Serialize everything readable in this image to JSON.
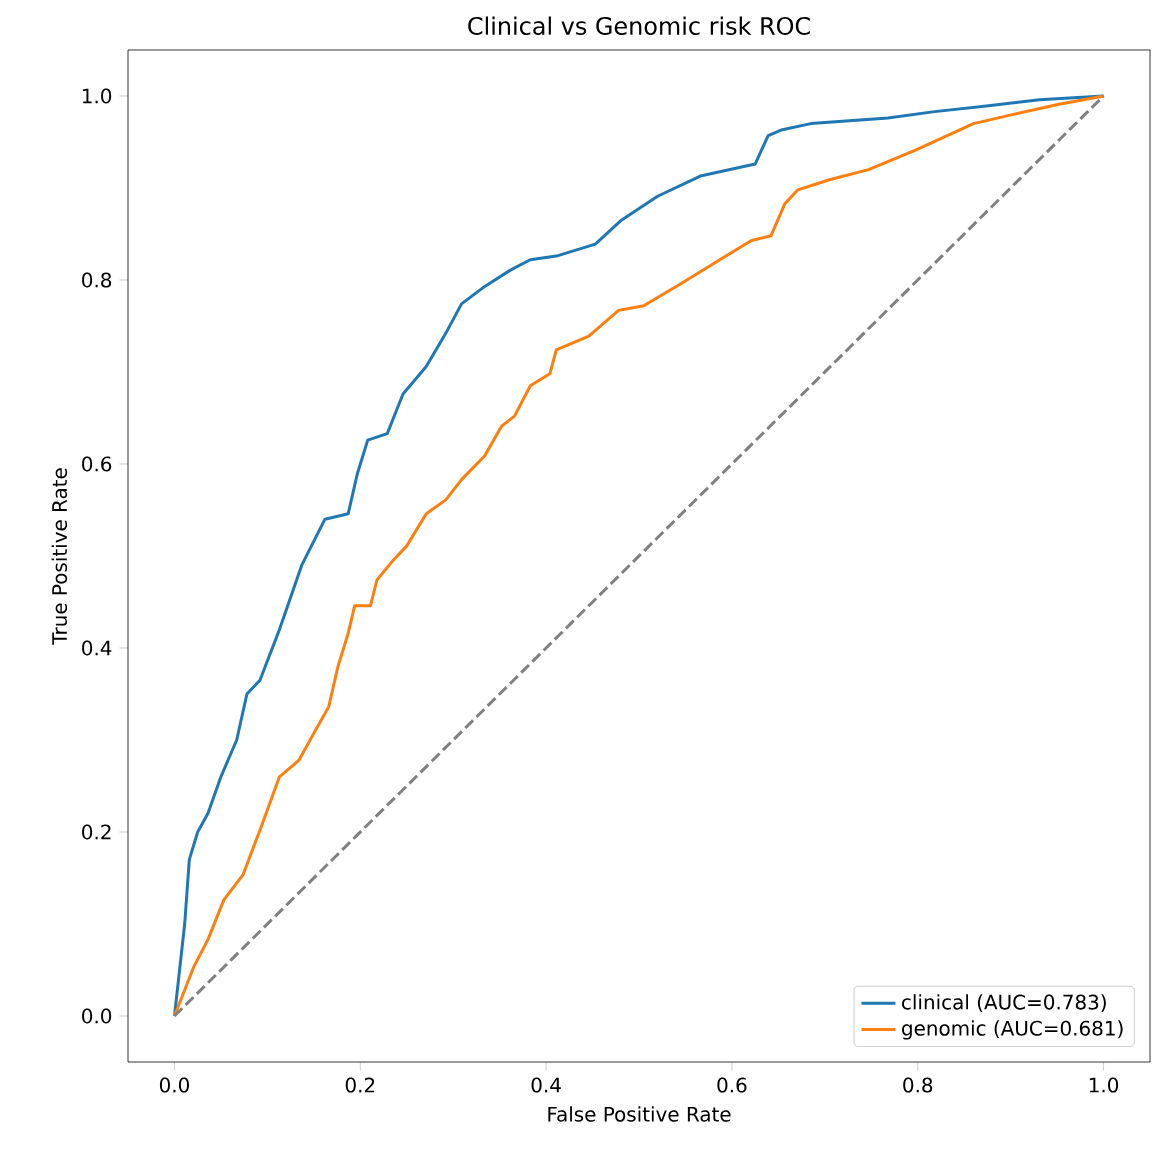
{
  "chart_data": {
    "type": "line",
    "title": "Clinical vs Genomic risk ROC",
    "xlabel": "False Positive Rate",
    "ylabel": "True Positive Rate",
    "xlim": [
      -0.05,
      1.05
    ],
    "ylim": [
      -0.05,
      1.05
    ],
    "xticks": [
      {
        "value": 0,
        "label": "0.0"
      },
      0.2,
      0.4,
      0.6,
      0.8,
      {
        "value": 1,
        "label": "1.0"
      }
    ],
    "yticks": [
      {
        "value": 0,
        "label": "0.0"
      },
      0.2,
      0.4,
      0.6,
      0.8,
      {
        "value": 1,
        "label": "1.0"
      }
    ],
    "legend": "bottom right",
    "grid": false,
    "series": [
      {
        "name": "clinical (AUC=0.783)",
        "color": "#1f77b4",
        "x": [
          0,
          0.011,
          0.016,
          0.025,
          0.036,
          0.05,
          0.067,
          0.078,
          0.092,
          0.113,
          0.137,
          0.162,
          0.187,
          0.197,
          0.208,
          0.229,
          0.246,
          0.271,
          0.292,
          0.309,
          0.334,
          0.362,
          0.383,
          0.411,
          0.453,
          0.481,
          0.52,
          0.566,
          0.625,
          0.639,
          0.653,
          0.685,
          0.768,
          0.818,
          0.874,
          0.931,
          1
        ],
        "values": [
          0,
          0.1,
          0.17,
          0.2,
          0.22,
          0.26,
          0.3,
          0.35,
          0.365,
          0.42,
          0.49,
          0.54,
          0.546,
          0.59,
          0.626,
          0.633,
          0.676,
          0.706,
          0.742,
          0.774,
          0.793,
          0.811,
          0.822,
          0.826,
          0.839,
          0.865,
          0.891,
          0.913,
          0.926,
          0.957,
          0.963,
          0.97,
          0.976,
          0.983,
          0.989,
          0.996,
          1
        ]
      },
      {
        "name": "genomic (AUC=0.681)",
        "color": "#ff7f0e",
        "x": [
          0,
          0.021,
          0.036,
          0.053,
          0.074,
          0.092,
          0.113,
          0.134,
          0.152,
          0.166,
          0.176,
          0.187,
          0.194,
          0.211,
          0.218,
          0.236,
          0.25,
          0.271,
          0.292,
          0.309,
          0.334,
          0.352,
          0.366,
          0.383,
          0.404,
          0.411,
          0.446,
          0.478,
          0.505,
          0.545,
          0.587,
          0.621,
          0.642,
          0.657,
          0.671,
          0.705,
          0.747,
          0.797,
          0.86,
          0.903,
          0.952,
          1
        ],
        "values": [
          0,
          0.054,
          0.083,
          0.126,
          0.154,
          0.202,
          0.26,
          0.278,
          0.311,
          0.336,
          0.38,
          0.416,
          0.446,
          0.446,
          0.474,
          0.496,
          0.511,
          0.546,
          0.561,
          0.583,
          0.609,
          0.641,
          0.652,
          0.685,
          0.698,
          0.724,
          0.739,
          0.767,
          0.772,
          0.796,
          0.822,
          0.843,
          0.848,
          0.883,
          0.898,
          0.909,
          0.92,
          0.941,
          0.97,
          0.98,
          0.991,
          1
        ]
      },
      {
        "color": "#808080",
        "line_style": "dashed",
        "x": [
          0,
          1
        ],
        "values": [
          0,
          1
        ]
      }
    ]
  }
}
